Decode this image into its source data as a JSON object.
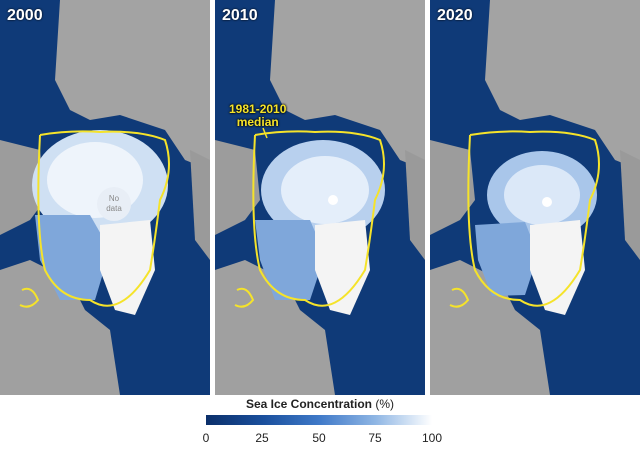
{
  "panels": [
    {
      "year": "2000"
    },
    {
      "year": "2010",
      "median_label_line1": "1981-2010",
      "median_label_line2": "median"
    },
    {
      "year": "2020"
    }
  ],
  "nodata_line1": "No",
  "nodata_line2": "data",
  "legend": {
    "title": "Sea Ice Concentration",
    "unit": "(%)",
    "ticks": [
      "0",
      "25",
      "50",
      "75",
      "100"
    ]
  },
  "colors": {
    "ocean": "#0f3a78",
    "land": "#9a9a9a",
    "ice_high": "#ffffff",
    "ice_low": "#3f79c8",
    "median_line": "#f5e32a"
  }
}
